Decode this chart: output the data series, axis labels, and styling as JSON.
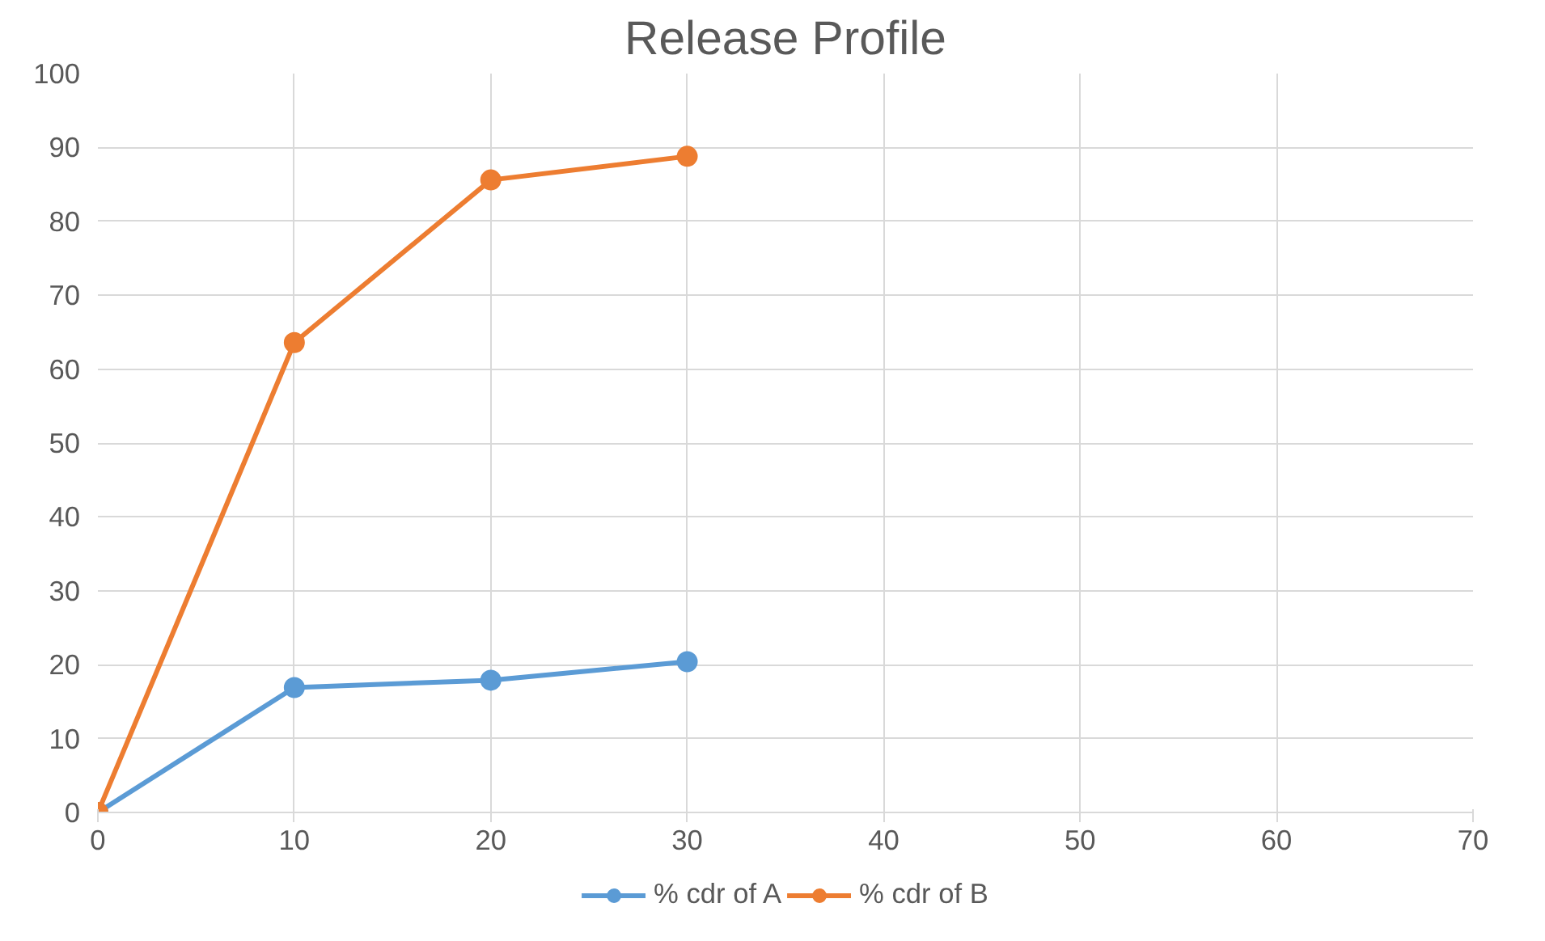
{
  "chart_data": {
    "type": "line",
    "title": "Release Profile",
    "x": [
      0,
      10,
      20,
      30
    ],
    "series": [
      {
        "name": "% cdr of A",
        "color": "#5b9bd5",
        "values": [
          0,
          16.9,
          17.9,
          20.4
        ]
      },
      {
        "name": "% cdr of B",
        "color": "#ed7d31",
        "values": [
          0,
          63.6,
          85.6,
          88.8
        ]
      }
    ],
    "xlim": [
      0,
      70
    ],
    "xticks": [
      0,
      10,
      20,
      30,
      40,
      50,
      60,
      70
    ],
    "ylim": [
      0,
      100
    ],
    "yticks": [
      0,
      10,
      20,
      30,
      40,
      50,
      60,
      70,
      80,
      90,
      100
    ],
    "grid": true,
    "legend": "bottom",
    "marker": "circle",
    "line_style": "solid"
  }
}
